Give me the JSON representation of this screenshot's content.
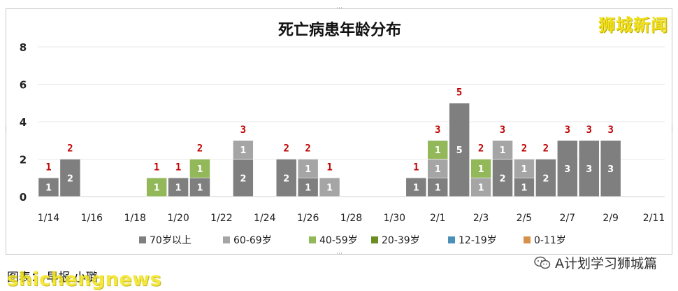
{
  "watermark_top": "狮城新闻",
  "caption": "图表：    早报 小璐",
  "watermark_bottom": "shichengnews",
  "account": "A计划学习狮城篇",
  "colors": {
    "c70plus": "#7f7f7f",
    "c60_69": "#a5a5a5",
    "c40_59": "#92b85a",
    "c20_39": "#6b8e23",
    "c12_19": "#4a90b8",
    "c0_11": "#d6904a",
    "total_label": "#c00000"
  },
  "chart_data": {
    "type": "bar",
    "stacked": true,
    "title": "死亡病患年龄分布",
    "ylim": [
      0,
      8
    ],
    "yticks": [
      "0",
      "2",
      "4",
      "6",
      "8"
    ],
    "grid": true,
    "legend_position": "bottom",
    "categories": [
      "1/14",
      "1/15",
      "1/16",
      "1/17",
      "1/18",
      "1/19",
      "1/20",
      "1/21",
      "1/22",
      "1/23",
      "1/24",
      "1/25",
      "1/26",
      "1/27",
      "1/28",
      "1/29",
      "1/30",
      "1/31",
      "2/1",
      "2/2",
      "2/3",
      "2/4",
      "2/5",
      "2/6",
      "2/7",
      "2/8",
      "2/9",
      "2/10",
      "2/11"
    ],
    "xtick_labels": [
      "1/14",
      "1/16",
      "1/18",
      "1/20",
      "1/22",
      "1/24",
      "1/26",
      "1/28",
      "1/30",
      "2/1",
      "2/3",
      "2/5",
      "2/7",
      "2/9",
      "2/11"
    ],
    "series": [
      {
        "name": "70岁以上",
        "color_key": "c70plus",
        "values": [
          1,
          2,
          0,
          0,
          0,
          0,
          1,
          1,
          0,
          2,
          0,
          2,
          1,
          0,
          0,
          0,
          0,
          1,
          1,
          5,
          0,
          2,
          1,
          2,
          3,
          3,
          3,
          0,
          0
        ]
      },
      {
        "name": "60-69岁",
        "color_key": "c60_69",
        "values": [
          0,
          0,
          0,
          0,
          0,
          0,
          0,
          0,
          0,
          1,
          0,
          0,
          1,
          1,
          0,
          0,
          0,
          0,
          1,
          0,
          1,
          1,
          1,
          0,
          0,
          0,
          0,
          0,
          0
        ]
      },
      {
        "name": "40-59岁",
        "color_key": "c40_59",
        "values": [
          0,
          0,
          0,
          0,
          0,
          1,
          0,
          1,
          0,
          0,
          0,
          0,
          0,
          0,
          0,
          0,
          0,
          0,
          1,
          0,
          1,
          0,
          0,
          0,
          0,
          0,
          0,
          0,
          0
        ]
      },
      {
        "name": "20-39岁",
        "color_key": "c20_39",
        "values": [
          0,
          0,
          0,
          0,
          0,
          0,
          0,
          0,
          0,
          0,
          0,
          0,
          0,
          0,
          0,
          0,
          0,
          0,
          0,
          0,
          0,
          0,
          0,
          0,
          0,
          0,
          0,
          0,
          0
        ]
      },
      {
        "name": "12-19岁",
        "color_key": "c12_19",
        "values": [
          0,
          0,
          0,
          0,
          0,
          0,
          0,
          0,
          0,
          0,
          0,
          0,
          0,
          0,
          0,
          0,
          0,
          0,
          0,
          0,
          0,
          0,
          0,
          0,
          0,
          0,
          0,
          0,
          0
        ]
      },
      {
        "name": "0-11岁",
        "color_key": "c0_11",
        "values": [
          0,
          0,
          0,
          0,
          0,
          0,
          0,
          0,
          0,
          0,
          0,
          0,
          0,
          0,
          0,
          0,
          0,
          0,
          0,
          0,
          0,
          0,
          0,
          0,
          0,
          0,
          0,
          0,
          0
        ]
      }
    ],
    "totals": [
      1,
      2,
      0,
      0,
      0,
      1,
      1,
      2,
      0,
      3,
      0,
      2,
      2,
      1,
      0,
      0,
      0,
      1,
      3,
      5,
      2,
      3,
      2,
      2,
      3,
      3,
      3,
      0,
      0
    ]
  }
}
